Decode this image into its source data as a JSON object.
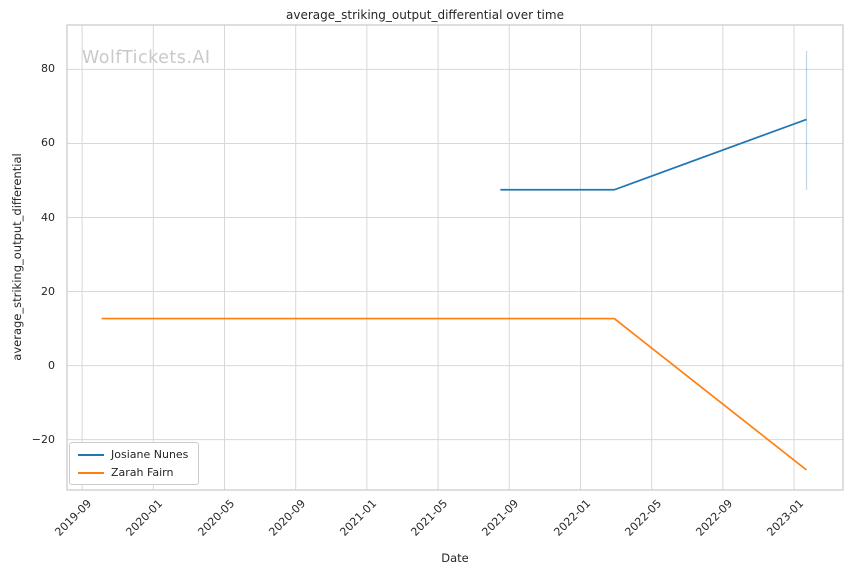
{
  "watermark": "WolfTickets.AI",
  "chart_data": {
    "type": "line",
    "title": "average_striking_output_differential over time",
    "xlabel": "Date",
    "ylabel": "average_striking_output_differential",
    "grid": true,
    "legend_position": "lower left",
    "x_unit": "months_since_2019-09",
    "xlim": [
      -0.85,
      42.75
    ],
    "ylim": [
      -33.6,
      92.0
    ],
    "x_ticks": [
      {
        "m": 0,
        "label": "2019-09"
      },
      {
        "m": 4,
        "label": "2020-01"
      },
      {
        "m": 8,
        "label": "2020-05"
      },
      {
        "m": 12,
        "label": "2020-09"
      },
      {
        "m": 16,
        "label": "2021-01"
      },
      {
        "m": 20,
        "label": "2021-05"
      },
      {
        "m": 24,
        "label": "2021-09"
      },
      {
        "m": 28,
        "label": "2022-01"
      },
      {
        "m": 32,
        "label": "2022-05"
      },
      {
        "m": 36,
        "label": "2022-09"
      },
      {
        "m": 40,
        "label": "2023-01"
      }
    ],
    "y_ticks": [
      {
        "value": -20,
        "label": "−20"
      },
      {
        "value": 0,
        "label": "0"
      },
      {
        "value": 20,
        "label": "20"
      },
      {
        "value": 40,
        "label": "40"
      },
      {
        "value": 60,
        "label": "60"
      },
      {
        "value": 80,
        "label": "80"
      }
    ],
    "series": [
      {
        "name": "Josiane Nunes",
        "color": "#1f77b4",
        "points": [
          {
            "m": 23.5,
            "date": "2021-08",
            "y": 47.5
          },
          {
            "m": 29.9,
            "date": "2022-03",
            "y": 47.5
          },
          {
            "m": 40.7,
            "date": "2023-01",
            "y": 66.5
          }
        ],
        "error_bar": {
          "m": 40.7,
          "y_low": 47.5,
          "y_high": 85.0,
          "color": "rgba(31,119,180,0.3)"
        }
      },
      {
        "name": "Zarah Fairn",
        "color": "#ff7f0e",
        "points": [
          {
            "m": 1.1,
            "date": "2019-10",
            "y": 12.7
          },
          {
            "m": 29.9,
            "date": "2022-03",
            "y": 12.7
          },
          {
            "m": 40.7,
            "date": "2023-01",
            "y": -28.2
          }
        ],
        "error_bar": null
      }
    ]
  }
}
